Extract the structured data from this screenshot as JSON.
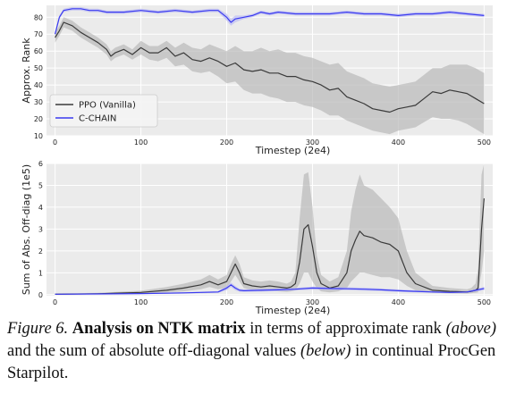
{
  "chart_data": [
    {
      "type": "line",
      "title": "",
      "xlabel": "Timestep (2e4)",
      "ylabel": "Approx. Rank",
      "xlim": [
        -10,
        510
      ],
      "ylim": [
        10,
        87
      ],
      "xticks": [
        "0",
        "100",
        "200",
        "300",
        "400",
        "500"
      ],
      "yticks": [
        "10",
        "20",
        "30",
        "40",
        "50",
        "60",
        "70",
        "80"
      ],
      "grid": true,
      "legend_position": "lower-left",
      "series": [
        {
          "name": "PPO (Vanilla)",
          "color": "#3a3a3a",
          "band_color": "#b5b5b5",
          "x": [
            0,
            5,
            10,
            20,
            30,
            40,
            50,
            60,
            65,
            70,
            80,
            90,
            100,
            110,
            120,
            130,
            140,
            150,
            160,
            170,
            180,
            190,
            200,
            210,
            220,
            230,
            240,
            250,
            260,
            270,
            280,
            290,
            300,
            310,
            320,
            330,
            340,
            350,
            360,
            370,
            380,
            390,
            400,
            410,
            420,
            430,
            440,
            450,
            460,
            470,
            480,
            490,
            500
          ],
          "y": [
            68,
            72,
            77,
            75,
            71,
            68,
            65,
            61,
            57,
            59,
            61,
            58,
            62,
            59,
            59,
            62,
            57,
            59,
            55,
            54,
            56,
            54,
            51,
            53,
            49,
            48,
            49,
            47,
            47,
            45,
            45,
            43,
            42,
            40,
            37,
            38,
            33,
            31,
            29,
            26,
            25,
            24,
            26,
            27,
            28,
            32,
            36,
            35,
            37,
            36,
            35,
            32,
            29
          ],
          "lower": [
            65,
            69,
            74,
            72,
            68,
            65,
            62,
            58,
            54,
            56,
            58,
            55,
            58,
            55,
            54,
            56,
            51,
            52,
            48,
            47,
            48,
            45,
            41,
            42,
            37,
            35,
            35,
            33,
            32,
            30,
            30,
            28,
            27,
            25,
            22,
            22,
            19,
            17,
            15,
            13,
            12,
            11,
            13,
            14,
            15,
            18,
            21,
            20,
            20,
            19,
            17,
            14,
            11
          ],
          "upper": [
            71,
            75,
            80,
            78,
            74,
            71,
            68,
            64,
            60,
            62,
            64,
            61,
            66,
            63,
            63,
            66,
            62,
            65,
            62,
            61,
            64,
            62,
            60,
            63,
            60,
            60,
            62,
            60,
            61,
            59,
            59,
            57,
            56,
            54,
            52,
            53,
            48,
            46,
            44,
            41,
            40,
            39,
            40,
            41,
            42,
            46,
            50,
            50,
            52,
            52,
            52,
            50,
            47
          ]
        },
        {
          "name": "C-CHAIN",
          "color": "#3a3af0",
          "band_color": "#b8b8f5",
          "x": [
            0,
            5,
            10,
            20,
            30,
            40,
            50,
            60,
            80,
            100,
            120,
            140,
            160,
            180,
            190,
            200,
            205,
            210,
            220,
            230,
            240,
            250,
            260,
            280,
            300,
            320,
            340,
            360,
            380,
            400,
            420,
            440,
            460,
            480,
            500
          ],
          "y": [
            70,
            80,
            84,
            85,
            85,
            84,
            84,
            83,
            83,
            84,
            83,
            84,
            83,
            84,
            84,
            80,
            77,
            79,
            80,
            81,
            83,
            82,
            83,
            82,
            82,
            82,
            83,
            82,
            82,
            81,
            82,
            82,
            83,
            82,
            81
          ],
          "lower": [
            69,
            79,
            83,
            84,
            84,
            83,
            83,
            82,
            82,
            83,
            82,
            83,
            82,
            83,
            83,
            78,
            75,
            77,
            79,
            80,
            82,
            81,
            82,
            81,
            81,
            81,
            82,
            81,
            81,
            80,
            81,
            81,
            82,
            81,
            80
          ],
          "upper": [
            71,
            81,
            85,
            86,
            86,
            85,
            85,
            84,
            84,
            85,
            84,
            85,
            84,
            85,
            85,
            82,
            79,
            81,
            81,
            82,
            84,
            83,
            84,
            83,
            83,
            83,
            84,
            83,
            83,
            82,
            83,
            83,
            84,
            83,
            82
          ]
        }
      ]
    },
    {
      "type": "line",
      "title": "",
      "xlabel": "Timestep (2e4)",
      "ylabel": "Sum of Abs. Off-diag (1e5)",
      "xlim": [
        -10,
        510
      ],
      "ylim": [
        -0.05,
        6
      ],
      "xticks": [
        "0",
        "100",
        "200",
        "300",
        "400",
        "500"
      ],
      "yticks": [
        "0",
        "1",
        "2",
        "3",
        "4",
        "5",
        "6"
      ],
      "grid": true,
      "series": [
        {
          "name": "PPO (Vanilla)",
          "color": "#3a3a3a",
          "band_color": "#b5b5b5",
          "x": [
            0,
            50,
            100,
            130,
            150,
            170,
            180,
            190,
            200,
            205,
            210,
            215,
            220,
            230,
            240,
            250,
            260,
            270,
            275,
            280,
            285,
            290,
            295,
            300,
            305,
            310,
            320,
            330,
            340,
            345,
            350,
            355,
            360,
            370,
            380,
            390,
            400,
            410,
            420,
            440,
            460,
            480,
            485,
            490,
            493,
            497,
            500
          ],
          "y": [
            0.02,
            0.04,
            0.1,
            0.2,
            0.3,
            0.45,
            0.6,
            0.45,
            0.6,
            1.0,
            1.4,
            1.0,
            0.5,
            0.4,
            0.35,
            0.4,
            0.35,
            0.3,
            0.35,
            0.5,
            1.5,
            3.0,
            3.2,
            2.2,
            1.0,
            0.5,
            0.3,
            0.4,
            1.0,
            2.0,
            2.5,
            2.9,
            2.7,
            2.6,
            2.4,
            2.3,
            2.0,
            1.0,
            0.5,
            0.2,
            0.15,
            0.12,
            0.15,
            0.2,
            0.3,
            3.0,
            4.4
          ],
          "lower": [
            0.0,
            0.02,
            0.05,
            0.1,
            0.15,
            0.25,
            0.35,
            0.25,
            0.3,
            0.6,
            0.9,
            0.6,
            0.3,
            0.2,
            0.15,
            0.2,
            0.15,
            0.12,
            0.15,
            0.2,
            0.5,
            1.0,
            1.0,
            0.6,
            0.3,
            0.15,
            0.1,
            0.15,
            0.3,
            0.6,
            0.8,
            1.0,
            1.0,
            0.9,
            0.8,
            0.8,
            0.7,
            0.4,
            0.2,
            0.08,
            0.06,
            0.05,
            0.06,
            0.08,
            0.1,
            1.0,
            2.0
          ],
          "upper": [
            0.05,
            0.08,
            0.18,
            0.35,
            0.5,
            0.7,
            0.9,
            0.7,
            0.9,
            1.4,
            1.8,
            1.4,
            0.8,
            0.65,
            0.6,
            0.65,
            0.6,
            0.5,
            0.6,
            1.0,
            3.5,
            5.5,
            5.6,
            4.0,
            1.8,
            0.9,
            0.6,
            0.8,
            2.0,
            3.8,
            4.8,
            5.5,
            5.0,
            4.8,
            4.4,
            4.0,
            3.5,
            2.0,
            1.0,
            0.4,
            0.3,
            0.25,
            0.3,
            0.5,
            1.2,
            5.5,
            6.0
          ]
        },
        {
          "name": "C-CHAIN",
          "color": "#3a3af0",
          "band_color": "#b8b8f5",
          "x": [
            0,
            50,
            100,
            150,
            190,
            200,
            205,
            210,
            215,
            220,
            240,
            260,
            280,
            300,
            320,
            340,
            360,
            380,
            400,
            420,
            440,
            460,
            480,
            490,
            500
          ],
          "y": [
            0.02,
            0.03,
            0.05,
            0.08,
            0.12,
            0.3,
            0.45,
            0.3,
            0.2,
            0.18,
            0.2,
            0.22,
            0.25,
            0.3,
            0.28,
            0.27,
            0.25,
            0.22,
            0.18,
            0.15,
            0.12,
            0.1,
            0.12,
            0.2,
            0.28
          ],
          "lower": [
            0.0,
            0.01,
            0.03,
            0.05,
            0.08,
            0.2,
            0.35,
            0.2,
            0.13,
            0.12,
            0.14,
            0.16,
            0.19,
            0.23,
            0.21,
            0.2,
            0.18,
            0.16,
            0.12,
            0.1,
            0.08,
            0.06,
            0.08,
            0.14,
            0.2
          ],
          "upper": [
            0.04,
            0.05,
            0.07,
            0.11,
            0.16,
            0.4,
            0.55,
            0.4,
            0.27,
            0.24,
            0.26,
            0.28,
            0.31,
            0.37,
            0.35,
            0.34,
            0.32,
            0.28,
            0.24,
            0.2,
            0.16,
            0.14,
            0.16,
            0.26,
            0.36
          ]
        }
      ]
    }
  ],
  "caption": {
    "figure_label": "Figure 6.",
    "bold": "Analysis on NTK matrix",
    "text1": " in terms of approximate rank ",
    "it1": "(above)",
    "text2": " and the sum of absolute off-diagonal values ",
    "it2": "(below)",
    "text3": " in continual ProcGen Starpilot."
  }
}
